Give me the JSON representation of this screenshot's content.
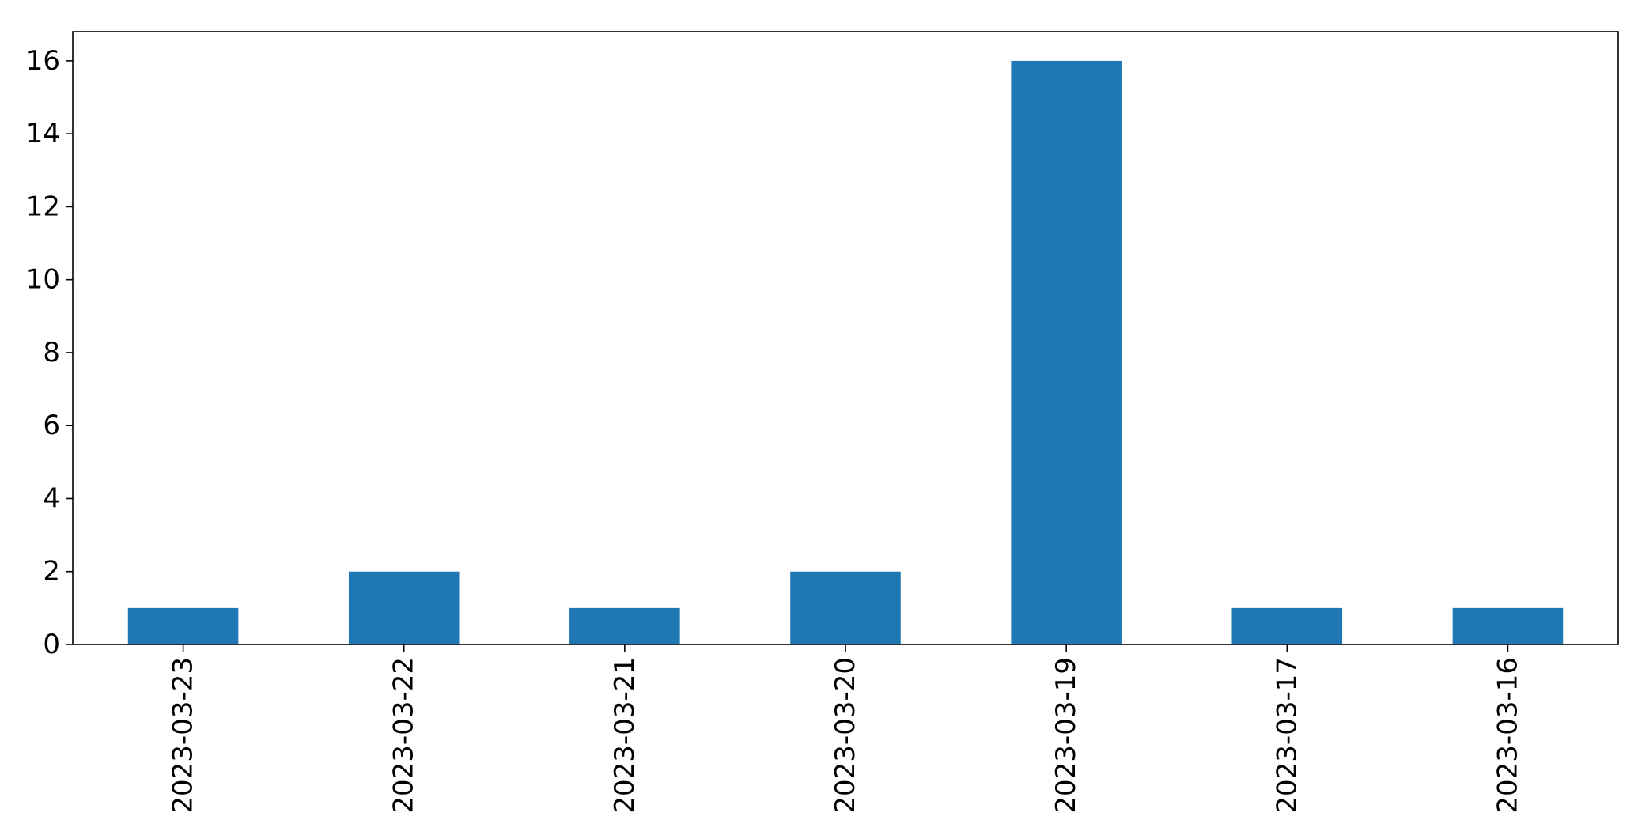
{
  "chart_data": {
    "type": "bar",
    "title": "",
    "xlabel": "",
    "ylabel": "",
    "categories": [
      "2023-03-23",
      "2023-03-22",
      "2023-03-21",
      "2023-03-20",
      "2023-03-19",
      "2023-03-17",
      "2023-03-16"
    ],
    "values": [
      1,
      2,
      1,
      2,
      16,
      1,
      1
    ],
    "ylim": [
      0,
      16.8
    ],
    "yticks": [
      0,
      2,
      4,
      6,
      8,
      10,
      12,
      14,
      16
    ],
    "grid": false,
    "legend": "none",
    "bar_color": "#1f77b4"
  }
}
